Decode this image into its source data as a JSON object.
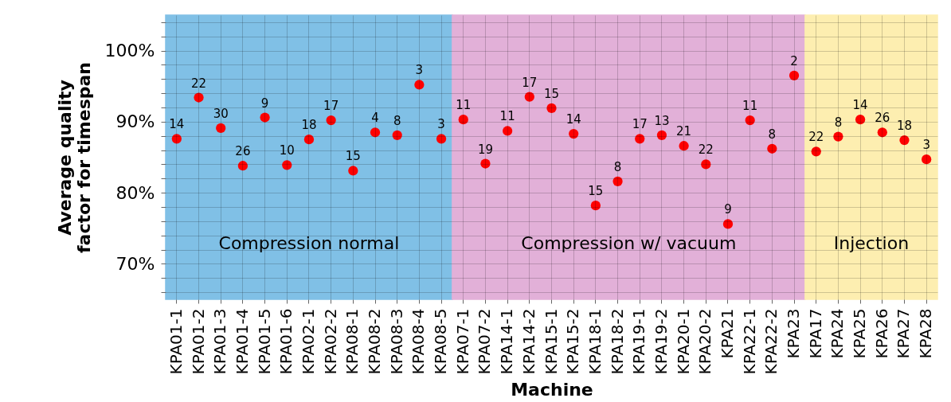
{
  "chart_data": {
    "type": "scatter",
    "xlabel": "Machine",
    "ylabel": "Average quality factor for timespan",
    "categories": [
      "KPA01-1",
      "KPA01-2",
      "KPA01-3",
      "KPA01-4",
      "KPA01-5",
      "KPA01-6",
      "KPA02-1",
      "KPA02-2",
      "KPA08-1",
      "KPA08-2",
      "KPA08-3",
      "KPA08-4",
      "KPA08-5",
      "KPA07-1",
      "KPA07-2",
      "KPA14-1",
      "KPA14-2",
      "KPA15-1",
      "KPA15-2",
      "KPA18-1",
      "KPA18-2",
      "KPA19-1",
      "KPA19-2",
      "KPA20-1",
      "KPA20-2",
      "KPA21",
      "KPA22-1",
      "KPA22-2",
      "KPA23",
      "KPA17",
      "KPA24",
      "KPA25",
      "KPA26",
      "KPA27",
      "KPA28"
    ],
    "series": [
      {
        "color": "#ff0000",
        "values": [
          87.6,
          93.4,
          89.1,
          83.8,
          90.6,
          83.9,
          87.5,
          90.2,
          83.1,
          88.5,
          88.1,
          95.2,
          87.6,
          90.3,
          84.1,
          88.7,
          93.5,
          91.9,
          88.3,
          78.2,
          81.6,
          87.6,
          88.1,
          86.6,
          84.0,
          75.6,
          90.2,
          86.2,
          96.5,
          85.8,
          87.9,
          90.3,
          88.5,
          87.4,
          84.7
        ]
      }
    ],
    "annotations": [
      {
        "text": "14",
        "x": "KPA01-1",
        "y": 87.6
      },
      {
        "text": "22",
        "x": "KPA01-2",
        "y": 93.4
      },
      {
        "text": "30",
        "x": "KPA01-3",
        "y": 89.1
      },
      {
        "text": "26",
        "x": "KPA01-4",
        "y": 83.8
      },
      {
        "text": "9",
        "x": "KPA01-5",
        "y": 90.6
      },
      {
        "text": "10",
        "x": "KPA01-6",
        "y": 83.9
      },
      {
        "text": "18",
        "x": "KPA02-1",
        "y": 87.5
      },
      {
        "text": "17",
        "x": "KPA02-2",
        "y": 90.2
      },
      {
        "text": "15",
        "x": "KPA08-1",
        "y": 83.1
      },
      {
        "text": "4",
        "x": "KPA08-2",
        "y": 88.5
      },
      {
        "text": "8",
        "x": "KPA08-3",
        "y": 88.1
      },
      {
        "text": "3",
        "x": "KPA08-4",
        "y": 95.2
      },
      {
        "text": "3",
        "x": "KPA08-5",
        "y": 87.6
      },
      {
        "text": "11",
        "x": "KPA07-1",
        "y": 90.3
      },
      {
        "text": "19",
        "x": "KPA07-2",
        "y": 84.1
      },
      {
        "text": "11",
        "x": "KPA14-1",
        "y": 88.7
      },
      {
        "text": "17",
        "x": "KPA14-2",
        "y": 93.5
      },
      {
        "text": "15",
        "x": "KPA15-1",
        "y": 91.9
      },
      {
        "text": "14",
        "x": "KPA15-2",
        "y": 88.3
      },
      {
        "text": "15",
        "x": "KPA18-1",
        "y": 78.2
      },
      {
        "text": "8",
        "x": "KPA18-2",
        "y": 81.6
      },
      {
        "text": "17",
        "x": "KPA19-1",
        "y": 87.6
      },
      {
        "text": "13",
        "x": "KPA19-2",
        "y": 88.1
      },
      {
        "text": "21",
        "x": "KPA20-1",
        "y": 86.6
      },
      {
        "text": "22",
        "x": "KPA20-2",
        "y": 84.0
      },
      {
        "text": "9",
        "x": "KPA21",
        "y": 75.6
      },
      {
        "text": "11",
        "x": "KPA22-1",
        "y": 90.2
      },
      {
        "text": "8",
        "x": "KPA22-2",
        "y": 86.2
      },
      {
        "text": "2",
        "x": "KPA23",
        "y": 96.5
      },
      {
        "text": "22",
        "x": "KPA17",
        "y": 85.8
      },
      {
        "text": "8",
        "x": "KPA24",
        "y": 87.9
      },
      {
        "text": "14",
        "x": "KPA25",
        "y": 90.3
      },
      {
        "text": "26",
        "x": "KPA26",
        "y": 88.5
      },
      {
        "text": "18",
        "x": "KPA27",
        "y": 87.4
      },
      {
        "text": "3",
        "x": "KPA28",
        "y": 84.7
      }
    ],
    "ylim": [
      65,
      105
    ],
    "yticks": [
      {
        "value": 66,
        "label": null
      },
      {
        "value": 68,
        "label": null
      },
      {
        "value": 70,
        "label": "70%"
      },
      {
        "value": 72,
        "label": null
      },
      {
        "value": 74,
        "label": null
      },
      {
        "value": 76,
        "label": null
      },
      {
        "value": 78,
        "label": null
      },
      {
        "value": 80,
        "label": "80%"
      },
      {
        "value": 82,
        "label": null
      },
      {
        "value": 84,
        "label": null
      },
      {
        "value": 86,
        "label": null
      },
      {
        "value": 88,
        "label": null
      },
      {
        "value": 90,
        "label": "90%"
      },
      {
        "value": 92,
        "label": null
      },
      {
        "value": 94,
        "label": null
      },
      {
        "value": 96,
        "label": null
      },
      {
        "value": 98,
        "label": null
      },
      {
        "value": 100,
        "label": "100%"
      },
      {
        "value": 102,
        "label": null
      },
      {
        "value": 104,
        "label": null
      }
    ],
    "bands": [
      {
        "axis": "x",
        "from": "KPA01-1",
        "to": "KPA08-5",
        "label": "Compression normal",
        "color": "#80c0e6"
      },
      {
        "axis": "x",
        "from": "KPA07-1",
        "to": "KPA23",
        "label": "Compression w/ vacuum",
        "color": "#e2b0d8"
      },
      {
        "axis": "x",
        "from": "KPA17",
        "to": "KPA28",
        "label": "Injection",
        "color": "#fdeeb0"
      }
    ],
    "grid": true,
    "marker": "circle",
    "legend": false
  }
}
